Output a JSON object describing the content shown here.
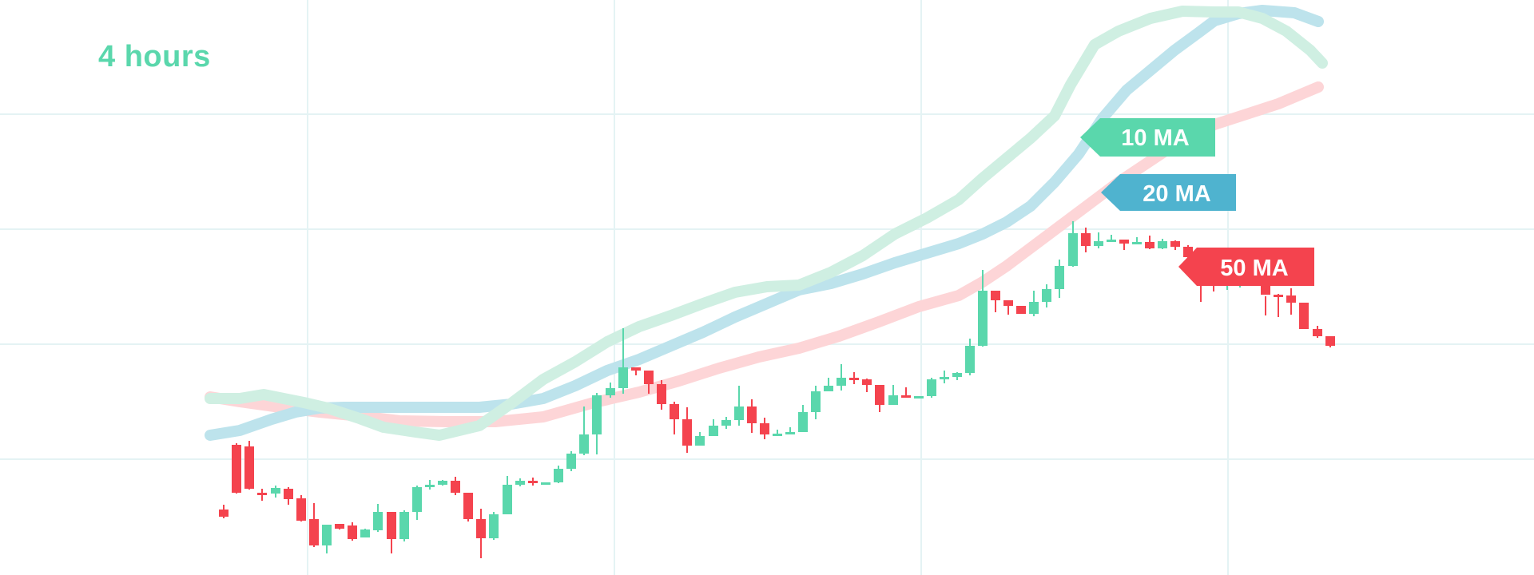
{
  "chart_data": {
    "type": "candlestick",
    "timeframe": "4 hours",
    "grid": true,
    "ylim": [
      0,
      720
    ],
    "colors": {
      "up": "#5ad7ac",
      "down": "#f4434e",
      "ma10": "#cfefe2",
      "ma20": "#bde3ec",
      "ma50": "#fdd5d7",
      "ma10_label": "#5ad7ac",
      "ma20_label": "#4fb3cf",
      "ma50_label": "#f4434e",
      "grid": "#e4f3f4"
    },
    "moving_averages": [
      {
        "name": "10 MA",
        "points": [
          [
            263,
            154
          ],
          [
            300,
            154
          ],
          [
            330,
            159
          ],
          [
            380,
            149
          ],
          [
            410,
            142
          ],
          [
            450,
            129
          ],
          [
            480,
            118
          ],
          [
            520,
            112
          ],
          [
            550,
            108
          ],
          [
            600,
            120
          ],
          [
            640,
            148
          ],
          [
            680,
            178
          ],
          [
            720,
            200
          ],
          [
            760,
            225
          ],
          [
            800,
            244
          ],
          [
            840,
            258
          ],
          [
            880,
            273
          ],
          [
            920,
            287
          ],
          [
            960,
            294
          ],
          [
            1000,
            296
          ],
          [
            1040,
            312
          ],
          [
            1080,
            333
          ],
          [
            1120,
            360
          ],
          [
            1160,
            380
          ],
          [
            1200,
            403
          ],
          [
            1230,
            430
          ],
          [
            1260,
            455
          ],
          [
            1290,
            480
          ],
          [
            1320,
            508
          ],
          [
            1340,
            547
          ],
          [
            1370,
            597
          ],
          [
            1400,
            614
          ],
          [
            1440,
            630
          ],
          [
            1480,
            639
          ],
          [
            1520,
            638
          ],
          [
            1550,
            638
          ],
          [
            1580,
            630
          ],
          [
            1610,
            614
          ],
          [
            1640,
            590
          ],
          [
            1655,
            574
          ]
        ]
      },
      {
        "name": "20 MA",
        "points": [
          [
            263,
            108
          ],
          [
            300,
            114
          ],
          [
            340,
            128
          ],
          [
            370,
            137
          ],
          [
            400,
            142
          ],
          [
            430,
            143
          ],
          [
            480,
            143
          ],
          [
            520,
            143
          ],
          [
            560,
            143
          ],
          [
            600,
            143
          ],
          [
            640,
            147
          ],
          [
            680,
            154
          ],
          [
            720,
            170
          ],
          [
            760,
            189
          ],
          [
            800,
            203
          ],
          [
            840,
            220
          ],
          [
            880,
            237
          ],
          [
            920,
            256
          ],
          [
            960,
            273
          ],
          [
            1000,
            290
          ],
          [
            1040,
            298
          ],
          [
            1080,
            310
          ],
          [
            1120,
            324
          ],
          [
            1160,
            336
          ],
          [
            1200,
            348
          ],
          [
            1230,
            360
          ],
          [
            1260,
            375
          ],
          [
            1290,
            395
          ],
          [
            1320,
            425
          ],
          [
            1350,
            460
          ],
          [
            1380,
            505
          ],
          [
            1410,
            540
          ],
          [
            1440,
            565
          ],
          [
            1470,
            590
          ],
          [
            1500,
            612
          ],
          [
            1520,
            627
          ],
          [
            1550,
            636
          ],
          [
            1580,
            640
          ],
          [
            1620,
            637
          ],
          [
            1650,
            626
          ]
        ]
      },
      {
        "name": "50 MA",
        "points": [
          [
            263,
            156
          ],
          [
            300,
            150
          ],
          [
            350,
            143
          ],
          [
            400,
            137
          ],
          [
            450,
            132
          ],
          [
            500,
            126
          ],
          [
            560,
            125
          ],
          [
            620,
            125
          ],
          [
            680,
            131
          ],
          [
            740,
            148
          ],
          [
            800,
            162
          ],
          [
            850,
            176
          ],
          [
            900,
            192
          ],
          [
            950,
            206
          ],
          [
            1000,
            217
          ],
          [
            1050,
            232
          ],
          [
            1100,
            250
          ],
          [
            1150,
            269
          ],
          [
            1200,
            283
          ],
          [
            1230,
            300
          ],
          [
            1260,
            320
          ],
          [
            1300,
            350
          ],
          [
            1340,
            380
          ],
          [
            1400,
            425
          ],
          [
            1460,
            465
          ],
          [
            1520,
            497
          ],
          [
            1560,
            510
          ],
          [
            1600,
            523
          ],
          [
            1650,
            544
          ]
        ]
      }
    ],
    "candles": [
      [
        280,
        15,
        6,
        21,
        4
      ],
      [
        296,
        96,
        36,
        98,
        35
      ],
      [
        312,
        94,
        41,
        101,
        40
      ],
      [
        328,
        36,
        35,
        41,
        26
      ],
      [
        345,
        35,
        42,
        45,
        30
      ],
      [
        361,
        41,
        28,
        43,
        21
      ],
      [
        377,
        29,
        1,
        33,
        0
      ],
      [
        393,
        3,
        -30,
        23,
        -32
      ],
      [
        409,
        -30,
        -4,
        -4,
        -40
      ],
      [
        425,
        -3,
        -9,
        -5,
        -10
      ],
      [
        441,
        -5,
        -22,
        -1,
        -24
      ],
      [
        457,
        -20,
        -10,
        -9,
        -20
      ],
      [
        473,
        -11,
        12,
        22,
        -13
      ],
      [
        490,
        12,
        -22,
        12,
        -40
      ],
      [
        506,
        -22,
        12,
        14,
        -25
      ],
      [
        522,
        12,
        43,
        45,
        2
      ],
      [
        538,
        43,
        46,
        52,
        40
      ],
      [
        554,
        46,
        51,
        52,
        45
      ],
      [
        570,
        51,
        36,
        56,
        33
      ],
      [
        586,
        36,
        3,
        33,
        0
      ],
      [
        602,
        3,
        -21,
        16,
        -46
      ],
      [
        618,
        -21,
        9,
        12,
        -23
      ],
      [
        635,
        9,
        46,
        57,
        9
      ],
      [
        651,
        46,
        51,
        54,
        44
      ],
      [
        667,
        51,
        49,
        55,
        45
      ],
      [
        683,
        49,
        49,
        49,
        49
      ],
      [
        699,
        49,
        66,
        70,
        48
      ],
      [
        715,
        66,
        85,
        88,
        63
      ],
      [
        731,
        85,
        109,
        144,
        83
      ],
      [
        747,
        109,
        158,
        161,
        84
      ],
      [
        764,
        158,
        167,
        174,
        155
      ],
      [
        780,
        167,
        193,
        242,
        160
      ],
      [
        796,
        193,
        189,
        190,
        183
      ],
      [
        812,
        189,
        172,
        184,
        160
      ],
      [
        828,
        172,
        147,
        177,
        140
      ],
      [
        844,
        147,
        128,
        150,
        109
      ],
      [
        860,
        128,
        95,
        143,
        86
      ],
      [
        876,
        95,
        107,
        112,
        99
      ],
      [
        893,
        107,
        120,
        128,
        113
      ],
      [
        909,
        120,
        127,
        131,
        116
      ],
      [
        925,
        127,
        144,
        170,
        120
      ],
      [
        941,
        144,
        123,
        153,
        111
      ],
      [
        957,
        123,
        109,
        130,
        103
      ],
      [
        973,
        109,
        110,
        115,
        109
      ],
      [
        989,
        110,
        112,
        118,
        109
      ],
      [
        1005,
        112,
        137,
        146,
        132
      ],
      [
        1021,
        137,
        163,
        170,
        128
      ],
      [
        1037,
        163,
        170,
        180,
        163
      ],
      [
        1053,
        170,
        180,
        197,
        164
      ],
      [
        1069,
        180,
        178,
        187,
        172
      ],
      [
        1085,
        178,
        171,
        179,
        162
      ],
      [
        1101,
        171,
        146,
        171,
        137
      ],
      [
        1118,
        146,
        158,
        171,
        146
      ],
      [
        1134,
        158,
        155,
        168,
        156
      ],
      [
        1150,
        155,
        157,
        157,
        154
      ],
      [
        1166,
        157,
        178,
        180,
        155
      ],
      [
        1182,
        178,
        181,
        189,
        173
      ],
      [
        1198,
        181,
        186,
        187,
        177
      ],
      [
        1214,
        186,
        220,
        229,
        183
      ],
      [
        1230,
        220,
        289,
        315,
        219
      ],
      [
        1246,
        289,
        277,
        286,
        262
      ],
      [
        1262,
        277,
        270,
        275,
        259
      ],
      [
        1278,
        270,
        260,
        264,
        260
      ],
      [
        1294,
        260,
        275,
        289,
        257
      ],
      [
        1310,
        275,
        291,
        297,
        268
      ],
      [
        1326,
        291,
        320,
        328,
        280
      ],
      [
        1343,
        320,
        361,
        376,
        319
      ],
      [
        1359,
        361,
        345,
        368,
        337
      ],
      [
        1375,
        345,
        351,
        362,
        342
      ],
      [
        1391,
        351,
        353,
        359,
        350
      ],
      [
        1407,
        353,
        348,
        353,
        340
      ],
      [
        1423,
        348,
        350,
        356,
        348
      ],
      [
        1439,
        350,
        342,
        358,
        341
      ],
      [
        1455,
        342,
        351,
        354,
        341
      ],
      [
        1471,
        351,
        344,
        352,
        340
      ],
      [
        1487,
        344,
        331,
        346,
        330
      ],
      [
        1503,
        331,
        318,
        331,
        275
      ],
      [
        1519,
        318,
        302,
        341,
        288
      ],
      [
        1536,
        302,
        303,
        311,
        290
      ],
      [
        1552,
        303,
        305,
        306,
        293
      ],
      [
        1568,
        305,
        300,
        306,
        300
      ],
      [
        1584,
        300,
        284,
        282,
        258
      ],
      [
        1600,
        284,
        283,
        285,
        256
      ],
      [
        1616,
        283,
        274,
        292,
        259
      ],
      [
        1632,
        274,
        241,
        260,
        246
      ],
      [
        1649,
        241,
        232,
        245,
        230
      ],
      [
        1665,
        232,
        220,
        226,
        218
      ]
    ]
  },
  "ma_labels": [
    {
      "text": "10 MA",
      "color": "#5ad7ac"
    },
    {
      "text": "20 MA",
      "color": "#4fb3cf"
    },
    {
      "text": "50 MA",
      "color": "#f4434e"
    }
  ],
  "timeframe_label": "4 hours"
}
